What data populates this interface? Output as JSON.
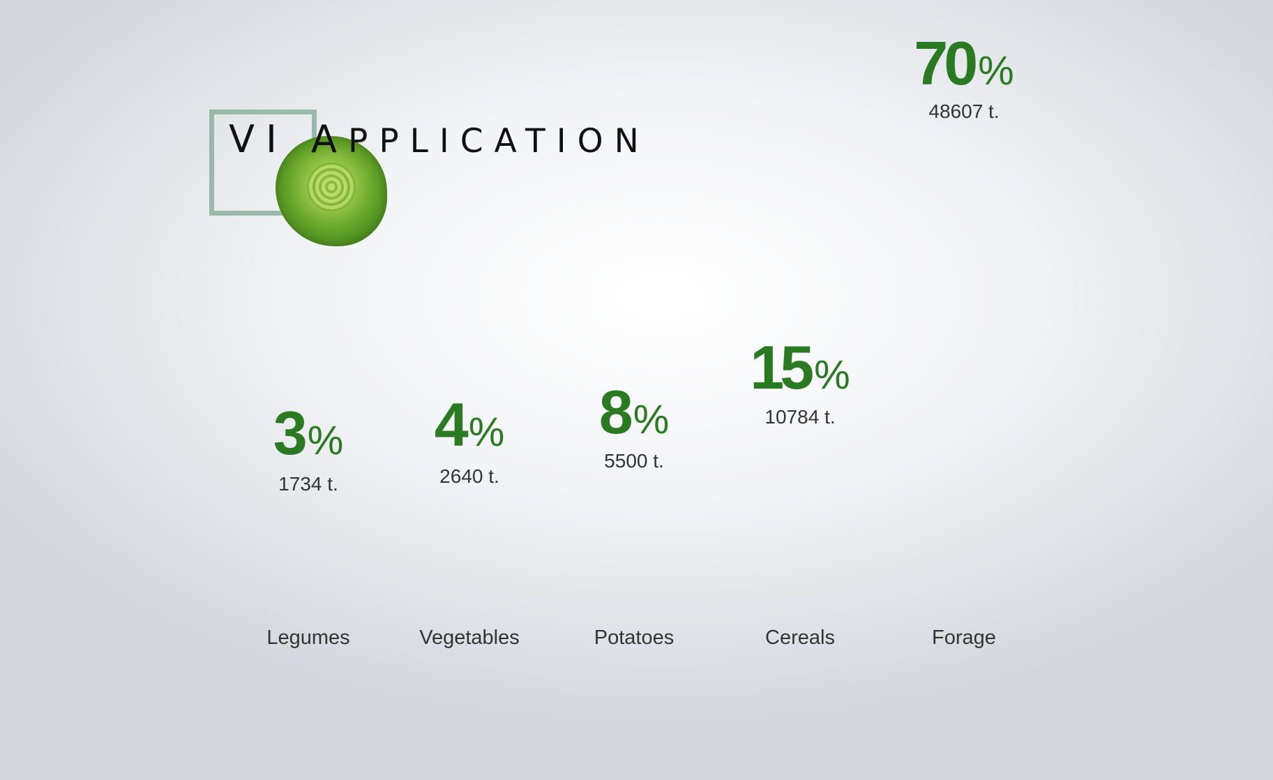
{
  "header": {
    "title_lead": "VI A",
    "title_rest": "PPLICATION"
  },
  "colors": {
    "accent_green": "#2a7a22",
    "text": "#333333"
  },
  "chart_data": {
    "type": "bar",
    "title": "VI APPLICATION",
    "categories": [
      "Legumes",
      "Vegetables",
      "Potatoes",
      "Cereals",
      "Forage"
    ],
    "series": [
      {
        "values_percent": [
          3,
          4,
          8,
          15,
          70
        ],
        "values_tonnes": [
          1734,
          2640,
          5500,
          10784,
          48607
        ]
      }
    ],
    "percent_labels": [
      "3",
      "4",
      "8",
      "15",
      "70"
    ],
    "percent_sign": "%",
    "tonnes_labels": [
      "1734 t.",
      "2640 t.",
      "5500 t.",
      "10784 t.",
      "48607 t."
    ],
    "fill_colors": [
      "#5f9e2c",
      "#e8742a",
      "#c9a675",
      "#b98d55",
      "#4f9b32"
    ],
    "grid": false,
    "legend": "none"
  }
}
